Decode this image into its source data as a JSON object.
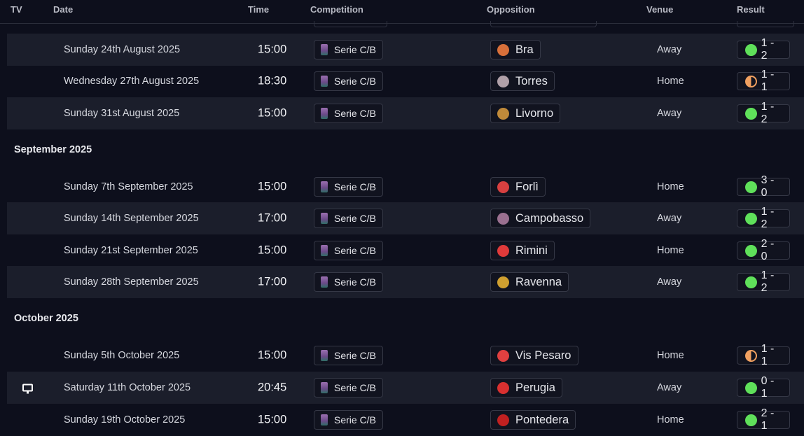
{
  "header": {
    "tv": "TV",
    "date": "Date",
    "time": "Time",
    "competition": "Competition",
    "opposition": "Opposition",
    "venue": "Venue",
    "result": "Result"
  },
  "colors": {
    "win": "#5fe05a",
    "draw": "#f0a060",
    "background": "#0d0f1c",
    "stripe": "#1b1e2b"
  },
  "months": [
    {
      "label": "September 2025"
    },
    {
      "label": "October 2025"
    }
  ],
  "fixtures": [
    {
      "date": "Sunday 24th August 2025",
      "time": "15:00",
      "competition": "Serie C/B",
      "opponent": "Bra",
      "venue": "Away",
      "result": "1 - 2",
      "outcome": "win",
      "crest": "#d8703a",
      "tv": false
    },
    {
      "date": "Wednesday 27th August 2025",
      "time": "18:30",
      "competition": "Serie C/B",
      "opponent": "Torres",
      "venue": "Home",
      "result": "1 - 1",
      "outcome": "draw",
      "crest": "#b0a0a8",
      "tv": false
    },
    {
      "date": "Sunday 31st August 2025",
      "time": "15:00",
      "competition": "Serie C/B",
      "opponent": "Livorno",
      "venue": "Away",
      "result": "1 - 2",
      "outcome": "win",
      "crest": "#c08a3a",
      "tv": false
    },
    {
      "date": "Sunday 7th September 2025",
      "time": "15:00",
      "competition": "Serie C/B",
      "opponent": "Forlì",
      "venue": "Home",
      "result": "3 - 0",
      "outcome": "win",
      "crest": "#d84040",
      "tv": false
    },
    {
      "date": "Sunday 14th September 2025",
      "time": "17:00",
      "competition": "Serie C/B",
      "opponent": "Campobasso",
      "venue": "Away",
      "result": "1 - 2",
      "outcome": "win",
      "crest": "#9a7090",
      "tv": false
    },
    {
      "date": "Sunday 21st September 2025",
      "time": "15:00",
      "competition": "Serie C/B",
      "opponent": "Rimini",
      "venue": "Home",
      "result": "2 - 0",
      "outcome": "win",
      "crest": "#e03a3a",
      "tv": false
    },
    {
      "date": "Sunday 28th September 2025",
      "time": "17:00",
      "competition": "Serie C/B",
      "opponent": "Ravenna",
      "venue": "Away",
      "result": "1 - 2",
      "outcome": "win",
      "crest": "#d0a030",
      "tv": false
    },
    {
      "date": "Sunday 5th October 2025",
      "time": "15:00",
      "competition": "Serie C/B",
      "opponent": "Vis Pesaro",
      "venue": "Home",
      "result": "1 - 1",
      "outcome": "draw",
      "crest": "#e04040",
      "tv": false
    },
    {
      "date": "Saturday 11th October 2025",
      "time": "20:45",
      "competition": "Serie C/B",
      "opponent": "Perugia",
      "venue": "Away",
      "result": "0 - 1",
      "outcome": "win",
      "crest": "#d83030",
      "tv": true
    },
    {
      "date": "Sunday 19th October 2025",
      "time": "15:00",
      "competition": "Serie C/B",
      "opponent": "Pontedera",
      "venue": "Home",
      "result": "2 - 1",
      "outcome": "win",
      "crest": "#c02020",
      "tv": false
    }
  ]
}
